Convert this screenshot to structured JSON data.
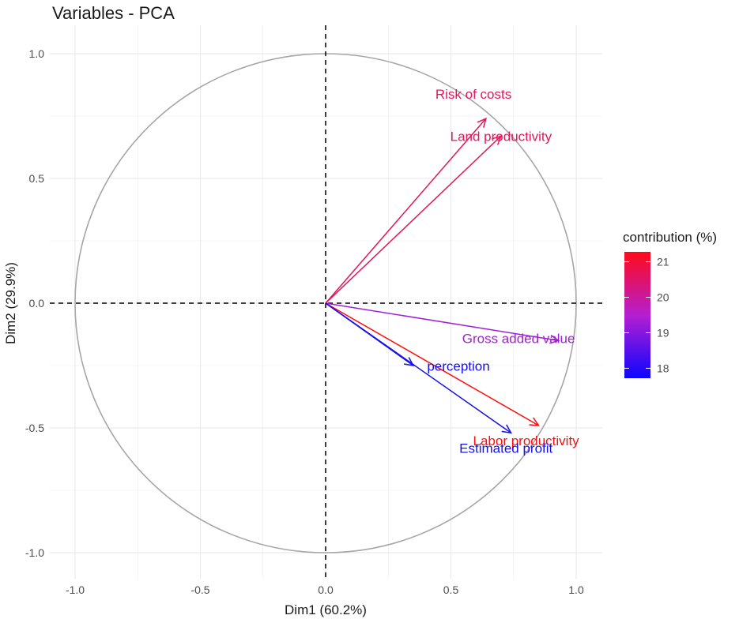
{
  "chart_data": {
    "type": "pca-variable-correlation-circle",
    "title": "Variables - PCA",
    "xlabel": "Dim1 (60.2%)",
    "ylabel": "Dim2 (29.9%)",
    "xlim": [
      -1.1,
      1.1
    ],
    "ylim": [
      -1.1,
      1.1
    ],
    "x_ticks": [
      -1.0,
      -0.5,
      0.0,
      0.5,
      1.0
    ],
    "y_ticks": [
      -1.0,
      -0.5,
      0.0,
      0.5,
      1.0
    ],
    "x_tick_labels": [
      "-1.0",
      "-0.5",
      "0.0",
      "0.5",
      "1.0"
    ],
    "y_tick_labels": [
      "-1.0",
      "-0.5",
      "0.0",
      "0.5",
      "1.0"
    ],
    "grid": true,
    "unit_circle": true,
    "variables": [
      {
        "name": "Risk of costs",
        "x": 0.64,
        "y": 0.74,
        "color": "#e2175b"
      },
      {
        "name": "Land productivity",
        "x": 0.7,
        "y": 0.67,
        "color": "#e2175b"
      },
      {
        "name": "Gross added value",
        "x": 0.93,
        "y": -0.15,
        "color": "#a21fd6"
      },
      {
        "name": "perception",
        "x": 0.35,
        "y": -0.25,
        "color": "#1511e8"
      },
      {
        "name": "Labor productivity",
        "x": 0.85,
        "y": -0.49,
        "color": "#ff0d0d"
      },
      {
        "name": "Estimated profit",
        "x": 0.74,
        "y": -0.52,
        "color": "#1511e8"
      }
    ],
    "legend": {
      "title": "contribution (%)",
      "position": "right",
      "ticks": [
        "18",
        "19",
        "20",
        "21"
      ],
      "gradient_low": "#0c05ff",
      "gradient_mid": "#b51fd0",
      "gradient_high": "#ff0a1a"
    }
  }
}
